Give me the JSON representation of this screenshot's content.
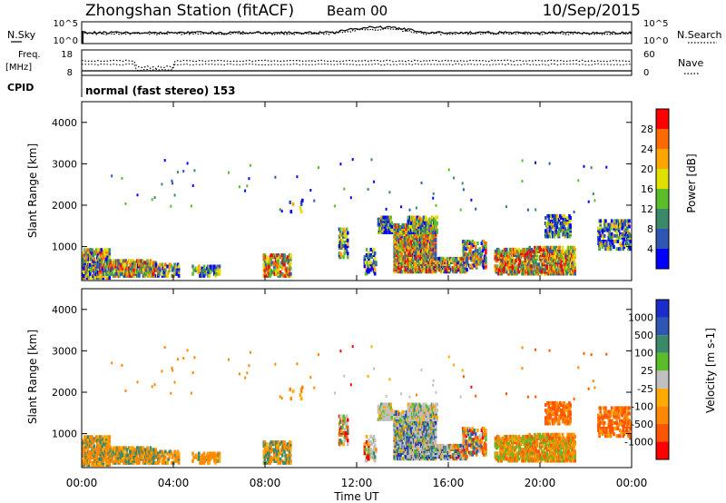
{
  "header": {
    "station": "Zhongshan Station (fitACF)",
    "beam": "Beam 00",
    "date": "10/Sep/2015"
  },
  "top_panels": {
    "nsky_label": "N.Sky",
    "nsearch_label": "N.Search",
    "noise_ticks_left": [
      "10^5",
      "10^0"
    ],
    "noise_ticks_right": [
      "10^5",
      "10^0"
    ],
    "freq_label_1": "Freq.",
    "freq_label_2": "[MHz]",
    "freq_ticks": [
      "18",
      "8"
    ],
    "nave_ticks": [
      "60",
      "0"
    ],
    "nave_label": "Nave",
    "cpid_label": "CPID",
    "cpid_text": "normal (fast stereo) 153"
  },
  "colors": {
    "power": [
      "#0000ff",
      "#2f56b3",
      "#3a8a6a",
      "#5bbd2a",
      "#e0e000",
      "#ffa500",
      "#ff6a00",
      "#ff0000"
    ],
    "velocity": [
      "#ff0000",
      "#ff5500",
      "#ff8800",
      "#ffaa00",
      "#c0c0c0",
      "#5bbd2a",
      "#3a8a6a",
      "#2f56b3",
      "#1a2ccc"
    ]
  },
  "chart_data": [
    {
      "type": "heatmap",
      "name": "power",
      "ylabel": "Slant Range [km]",
      "y_ticks": [
        "1000",
        "2000",
        "3000",
        "4000"
      ],
      "ylim": [
        180,
        4500
      ],
      "colorbar_label": "Power [dB]",
      "colorbar_ticks": [
        "4",
        "8",
        "12",
        "16",
        "20",
        "24",
        "28"
      ],
      "colorbar_range": [
        0,
        30
      ]
    },
    {
      "type": "heatmap",
      "name": "velocity",
      "ylabel": "Slant Range [km]",
      "y_ticks": [
        "1000",
        "2000",
        "3000",
        "4000"
      ],
      "ylim": [
        180,
        4500
      ],
      "colorbar_label": "Velocity [m s-1]",
      "colorbar_ticks": [
        "-1000",
        "-500",
        "-100",
        "-25",
        "25",
        "100",
        "500",
        "1000"
      ]
    }
  ],
  "x_axis": {
    "ticks": [
      "00:00",
      "04:00",
      "08:00",
      "12:00",
      "16:00",
      "20:00",
      "00:00"
    ],
    "label": "Time UT",
    "xlim": [
      0,
      24
    ]
  }
}
